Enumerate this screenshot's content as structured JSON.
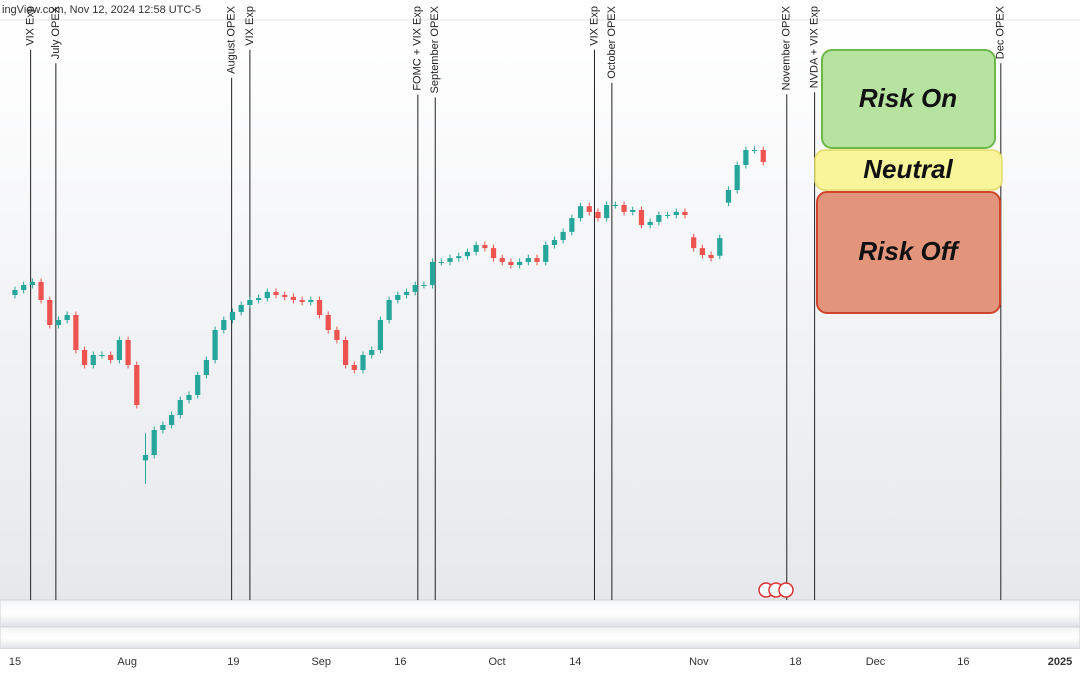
{
  "header": "ingView.com, Nov 12, 2024 12:58 UTC-5",
  "annotations": [
    "Risk On",
    "Neutral",
    "Risk Off"
  ],
  "chart_data": {
    "type": "candlestick",
    "up_color": "#26a69a",
    "down_color": "#ef5350",
    "open": [
      5610,
      5623,
      5636,
      5644,
      5597,
      5532,
      5545,
      5558,
      5467,
      5428,
      5454,
      5454,
      5441,
      5493,
      5428,
      5180,
      5194,
      5259,
      5272,
      5298,
      5337,
      5350,
      5402,
      5441,
      5519,
      5545,
      5566,
      5584,
      5597,
      5602,
      5618,
      5610,
      5605,
      5597,
      5592,
      5597,
      5558,
      5519,
      5493,
      5428,
      5415,
      5454,
      5467,
      5545,
      5597,
      5610,
      5618,
      5636,
      5636,
      5696,
      5696,
      5706,
      5711,
      5722,
      5740,
      5732,
      5706,
      5696,
      5688,
      5696,
      5706,
      5696,
      5740,
      5753,
      5774,
      5810,
      5841,
      5826,
      5810,
      5844,
      5844,
      5826,
      5831,
      5792,
      5800,
      5818,
      5818,
      5826,
      5760,
      5732,
      5714,
      5712,
      5850,
      5883,
      5948,
      5987,
      5987
    ],
    "high": [
      5632,
      5645,
      5653,
      5653,
      5606,
      5554,
      5567,
      5567,
      5476,
      5463,
      5463,
      5463,
      5502,
      5502,
      5437,
      5250,
      5268,
      5281,
      5307,
      5346,
      5359,
      5411,
      5450,
      5528,
      5554,
      5575,
      5593,
      5606,
      5611,
      5627,
      5627,
      5619,
      5614,
      5606,
      5606,
      5606,
      5567,
      5528,
      5502,
      5437,
      5463,
      5476,
      5554,
      5606,
      5619,
      5627,
      5645,
      5645,
      5705,
      5705,
      5715,
      5720,
      5731,
      5749,
      5749,
      5741,
      5715,
      5705,
      5705,
      5715,
      5715,
      5749,
      5762,
      5783,
      5819,
      5850,
      5850,
      5835,
      5853,
      5853,
      5853,
      5840,
      5840,
      5809,
      5827,
      5827,
      5835,
      5835,
      5769,
      5741,
      5723,
      5767,
      5892,
      5957,
      5996,
      5996,
      5996
    ],
    "low": [
      5601,
      5614,
      5627,
      5588,
      5523,
      5523,
      5536,
      5458,
      5419,
      5419,
      5445,
      5432,
      5432,
      5419,
      5315,
      5119,
      5185,
      5250,
      5263,
      5289,
      5328,
      5341,
      5393,
      5432,
      5510,
      5536,
      5557,
      5575,
      5588,
      5593,
      5601,
      5596,
      5588,
      5583,
      5583,
      5549,
      5510,
      5484,
      5419,
      5406,
      5406,
      5445,
      5458,
      5536,
      5588,
      5601,
      5609,
      5627,
      5627,
      5687,
      5687,
      5697,
      5702,
      5713,
      5723,
      5697,
      5687,
      5679,
      5679,
      5687,
      5687,
      5687,
      5731,
      5744,
      5765,
      5801,
      5817,
      5801,
      5801,
      5835,
      5817,
      5817,
      5783,
      5783,
      5791,
      5809,
      5809,
      5809,
      5723,
      5705,
      5697,
      5703,
      5841,
      5874,
      5939,
      5978,
      5947
    ],
    "close": [
      5623,
      5636,
      5644,
      5597,
      5532,
      5545,
      5558,
      5467,
      5428,
      5454,
      5454,
      5441,
      5493,
      5428,
      5324,
      5194,
      5259,
      5272,
      5298,
      5337,
      5350,
      5402,
      5441,
      5519,
      5545,
      5566,
      5584,
      5597,
      5602,
      5618,
      5610,
      5605,
      5597,
      5592,
      5597,
      5558,
      5519,
      5493,
      5428,
      5415,
      5454,
      5467,
      5545,
      5597,
      5610,
      5618,
      5636,
      5636,
      5696,
      5696,
      5706,
      5711,
      5722,
      5740,
      5732,
      5706,
      5696,
      5688,
      5696,
      5706,
      5696,
      5740,
      5753,
      5774,
      5810,
      5841,
      5826,
      5810,
      5844,
      5844,
      5826,
      5831,
      5792,
      5800,
      5818,
      5818,
      5826,
      5818,
      5732,
      5714,
      5706,
      5758,
      5883,
      5948,
      5987,
      5987,
      5956
    ],
    "ylim": [
      4817,
      6325
    ],
    "xlim": [
      -1.72,
      122.4
    ],
    "xticks": [
      {
        "value": 0,
        "label": "15"
      },
      {
        "value": 12.9,
        "label": "Aug"
      },
      {
        "value": 25.1,
        "label": "19"
      },
      {
        "value": 35.2,
        "label": "Sep"
      },
      {
        "value": 44.3,
        "label": "16"
      },
      {
        "value": 55.4,
        "label": "Oct"
      },
      {
        "value": 64.4,
        "label": "14"
      },
      {
        "value": 78.6,
        "label": "Nov"
      },
      {
        "value": 89.7,
        "label": "18"
      },
      {
        "value": 98.9,
        "label": "Dec"
      },
      {
        "value": 109,
        "label": "16"
      },
      {
        "value": 120.1,
        "label": "2025"
      }
    ],
    "events": [
      {
        "label": "VIX Exp",
        "x": 1.8
      },
      {
        "label": "July OPEX",
        "x": 4.7
      },
      {
        "label": "August OPEX",
        "x": 24.9
      },
      {
        "label": "VIX Exp",
        "x": 27.0
      },
      {
        "label": "FOMC + VIX Exp",
        "x": 46.3
      },
      {
        "label": "September OPEX",
        "x": 48.3
      },
      {
        "label": "VIX Exp",
        "x": 66.6
      },
      {
        "label": "October OPEX",
        "x": 68.6
      },
      {
        "label": "November OPEX",
        "x": 88.7
      },
      {
        "label": "NVDA + VIX Exp",
        "x": 91.9
      },
      {
        "label": "Dec OPEX",
        "x": 113.3
      }
    ]
  }
}
